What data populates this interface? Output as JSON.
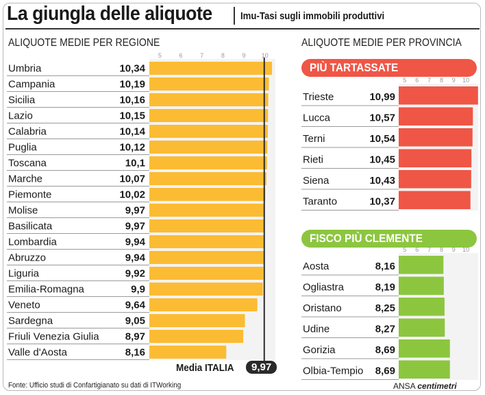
{
  "header": {
    "title": "La giungla delle aliquote",
    "subtitle": "Imu-Tasi sugli immobili produttivi"
  },
  "colors": {
    "region_bar": "#fbbc33",
    "top_bar": "#ef5646",
    "bottom_bar": "#8cc63f",
    "mean_line": "#2a2a2a"
  },
  "chart_data": [
    {
      "type": "bar",
      "orientation": "horizontal",
      "title": "ALIQUOTE MEDIE PER REGIONE",
      "categories": [
        "Umbria",
        "Campania",
        "Sicilia",
        "Lazio",
        "Calabria",
        "Puglia",
        "Toscana",
        "Marche",
        "Piemonte",
        "Molise",
        "Basilicata",
        "Lombardia",
        "Abruzzo",
        "Liguria",
        "Emilia-Romagna",
        "Veneto",
        "Sardegna",
        "Friuli Venezia Giulia",
        "Valle d'Aosta"
      ],
      "values": [
        10.34,
        10.19,
        10.16,
        10.15,
        10.14,
        10.12,
        10.1,
        10.07,
        10.02,
        9.97,
        9.97,
        9.94,
        9.94,
        9.92,
        9.9,
        9.64,
        9.05,
        8.97,
        8.16
      ],
      "value_labels": [
        "10,34",
        "10,19",
        "10,16",
        "10,15",
        "10,14",
        "10,12",
        "10,1",
        "10,07",
        "10,02",
        "9,97",
        "9,97",
        "9,94",
        "9,94",
        "9,92",
        "9,9",
        "9,64",
        "9,05",
        "8,97",
        "8,16"
      ],
      "xlim": [
        4.5,
        10.5
      ],
      "ticks": [
        "5",
        "6",
        "7",
        "8",
        "9",
        "10"
      ],
      "reference_line": {
        "label": "Media ITALIA",
        "value": 9.97,
        "value_label": "9,97"
      }
    },
    {
      "type": "bar",
      "orientation": "horizontal",
      "title": "PIÙ TARTASSATE",
      "categories": [
        "Trieste",
        "Lucca",
        "Terni",
        "Rieti",
        "Siena",
        "Taranto"
      ],
      "values": [
        10.99,
        10.57,
        10.54,
        10.45,
        10.43,
        10.37
      ],
      "value_labels": [
        "10,99",
        "10,57",
        "10,54",
        "10,45",
        "10,43",
        "10,37"
      ],
      "xlim": [
        4.5,
        11.0
      ],
      "ticks": [
        "5",
        "6",
        "7",
        "8",
        "9",
        "10"
      ]
    },
    {
      "type": "bar",
      "orientation": "horizontal",
      "title": "FISCO PIÙ CLEMENTE",
      "categories": [
        "Aosta",
        "Ogliastra",
        "Oristano",
        "Udine",
        "Gorizia",
        "Olbia-Tempio"
      ],
      "values": [
        8.16,
        8.19,
        8.25,
        8.27,
        8.69,
        8.69
      ],
      "value_labels": [
        "8,16",
        "8,19",
        "8,25",
        "8,27",
        "8,69",
        "8,69"
      ],
      "xlim": [
        4.5,
        11.0
      ],
      "ticks": [
        "5",
        "6",
        "7",
        "8",
        "9",
        "10"
      ]
    }
  ],
  "labels": {
    "left_section": "ALIQUOTE MEDIE PER REGIONE",
    "right_section": "ALIQUOTE MEDIE PER PROVINCIA",
    "top_banner": "PIÙ TARTASSATE",
    "bottom_banner": "FISCO PIÙ CLEMENTE"
  },
  "footer": {
    "source": "Fonte: Ufficio studi di Confartigianato su dati di ITWorking",
    "brand_prefix": "ANSA",
    "brand_name": "centimetri"
  }
}
